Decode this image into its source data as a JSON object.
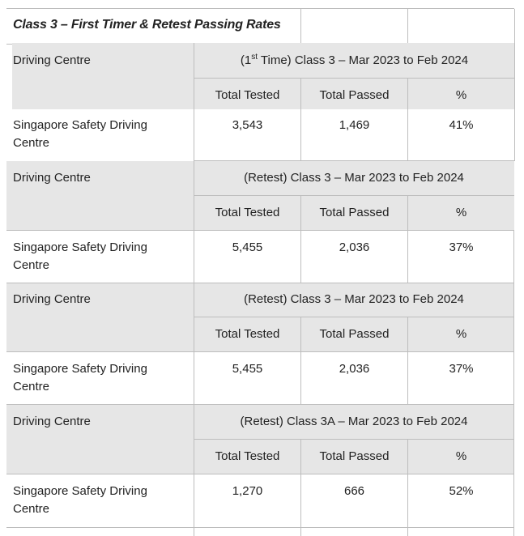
{
  "title": "Class 3 – First Timer & Retest Passing Rates",
  "sections": [
    {
      "centre_header": "Driving Centre",
      "period_prefix": "(1",
      "period_sup": "st",
      "period_suffix": " Time) Class 3 – Mar 2023 to Feb 2024",
      "col_tested": "Total Tested",
      "col_passed": "Total Passed",
      "col_pct": "%",
      "row": {
        "centre_line1": "Singapore Safety Driving",
        "centre_line2": "Centre",
        "tested": "3,543",
        "passed": "1,469",
        "pct": "41%"
      }
    },
    {
      "centre_header": "Driving Centre",
      "period": "(Retest) Class 3 – Mar 2023 to Feb 2024",
      "col_tested": "Total Tested",
      "col_passed": "Total Passed",
      "col_pct": "%",
      "row": {
        "centre_line1": "Singapore Safety Driving",
        "centre_line2": "Centre",
        "tested": "5,455",
        "passed": "2,036",
        "pct": "37%"
      }
    },
    {
      "centre_header": "Driving Centre",
      "period": "(Retest) Class 3 – Mar 2023 to Feb 2024",
      "col_tested": "Total Tested",
      "col_passed": "Total Passed",
      "col_pct": "%",
      "row": {
        "centre_line1": "Singapore Safety Driving",
        "centre_line2": "Centre",
        "tested": "5,455",
        "passed": "2,036",
        "pct": "37%"
      }
    },
    {
      "centre_header": "Driving Centre",
      "period": "(Retest) Class 3A – Mar 2023 to Feb 2024",
      "col_tested": "Total Tested",
      "col_passed": "Total Passed",
      "col_pct": "%",
      "row": {
        "centre_line1": "Singapore Safety Driving",
        "centre_line2": "Centre",
        "tested": "1,270",
        "passed": "666",
        "pct": "52%"
      }
    }
  ]
}
